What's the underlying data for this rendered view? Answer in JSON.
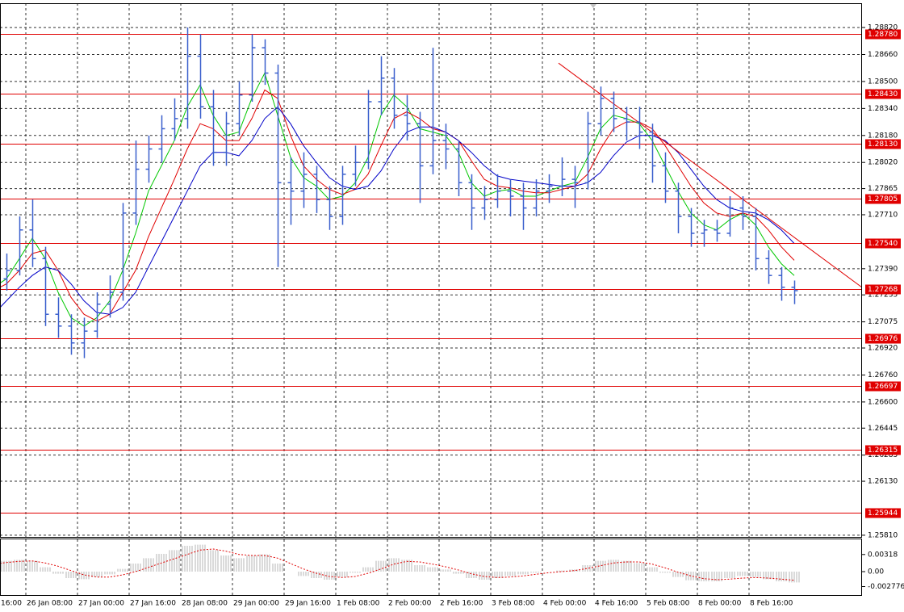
{
  "chart_data": {
    "type": "ohlc",
    "color": "#3a5fcd",
    "categories": [
      "16:00",
      null,
      null,
      null,
      "26 Jan 08:00",
      null,
      null,
      null,
      "27 Jan 00:00",
      null,
      null,
      null,
      "27 Jan 16:00",
      null,
      null,
      null,
      "28 Jan 08:00",
      null,
      null,
      null,
      "29 Jan 00:00",
      null,
      null,
      null,
      "29 Jan 16:00",
      null,
      null,
      null,
      "1 Feb 08:00",
      null,
      null,
      null,
      "2 Feb 00:00",
      null,
      null,
      null,
      "2 Feb 16:00",
      null,
      null,
      null,
      "3 Feb 08:00",
      null,
      null,
      null,
      "4 Feb 00:00",
      null,
      null,
      null,
      "4 Feb 16:00",
      null,
      null,
      null,
      "5 Feb 08:00",
      null,
      null,
      null,
      "8 Feb 00:00",
      null,
      null,
      null,
      "8 Feb 16:00",
      null,
      null,
      null
    ],
    "open": [
      1.2722,
      1.2728,
      1.2733,
      1.2738,
      1.2762,
      1.2745,
      1.2712,
      1.2705,
      1.2695,
      1.2702,
      1.2718,
      1.2725,
      1.2772,
      1.2798,
      1.281,
      1.2822,
      1.2828,
      1.2865,
      1.2835,
      1.2808,
      1.2825,
      1.2842,
      1.287,
      1.2855,
      1.279,
      1.2785,
      1.2795,
      1.278,
      1.277,
      1.2795,
      1.2802,
      1.2838,
      1.2852,
      1.283,
      1.2825,
      1.28,
      1.2815,
      1.281,
      1.279,
      1.2775,
      1.278,
      1.2785,
      1.2782,
      1.2775,
      1.2785,
      1.2788,
      1.2792,
      1.279,
      1.2825,
      1.284,
      1.2828,
      1.2826,
      1.282,
      1.28,
      1.2785,
      1.277,
      1.276,
      1.2762,
      1.276,
      1.2775,
      1.277,
      1.2745,
      1.2735,
      1.2728
    ],
    "high": [
      1.2735,
      1.274,
      1.2748,
      1.277,
      1.278,
      1.2752,
      1.2722,
      1.2712,
      1.271,
      1.2725,
      1.2735,
      1.2778,
      1.2815,
      1.2818,
      1.283,
      1.284,
      1.2882,
      1.2878,
      1.2845,
      1.2832,
      1.285,
      1.2878,
      1.2875,
      1.286,
      1.2805,
      1.2808,
      1.28,
      1.2788,
      1.28,
      1.2812,
      1.2845,
      1.2865,
      1.2858,
      1.2842,
      1.2832,
      1.287,
      1.2825,
      1.2815,
      1.2795,
      1.2788,
      1.2795,
      1.2792,
      1.279,
      1.2792,
      1.2795,
      1.2805,
      1.28,
      1.2832,
      1.2847,
      1.2844,
      1.2835,
      1.2835,
      1.2825,
      1.2808,
      1.279,
      1.2775,
      1.2768,
      1.2768,
      1.2782,
      1.2782,
      1.2775,
      1.275,
      1.274,
      1.2732
    ],
    "low": [
      1.2718,
      1.2724,
      1.2726,
      1.2735,
      1.274,
      1.2705,
      1.2698,
      1.2688,
      1.2686,
      1.2698,
      1.271,
      1.272,
      1.2765,
      1.279,
      1.2802,
      1.2815,
      1.2822,
      1.2828,
      1.28,
      1.28,
      1.2818,
      1.2838,
      1.2848,
      1.274,
      1.2765,
      1.2775,
      1.2772,
      1.2762,
      1.2765,
      1.2788,
      1.2798,
      1.283,
      1.2822,
      1.2815,
      1.2778,
      1.2795,
      1.2798,
      1.2782,
      1.2762,
      1.2768,
      1.2775,
      1.277,
      1.2762,
      1.277,
      1.2778,
      1.2782,
      1.2775,
      1.2786,
      1.2818,
      1.282,
      1.2815,
      1.281,
      1.279,
      1.2778,
      1.276,
      1.2752,
      1.2752,
      1.2755,
      1.2758,
      1.2762,
      1.2738,
      1.273,
      1.272,
      1.2718
    ],
    "close": [
      1.2728,
      1.2733,
      1.2738,
      1.2762,
      1.2745,
      1.2712,
      1.2705,
      1.2695,
      1.2702,
      1.2718,
      1.2725,
      1.2772,
      1.2798,
      1.281,
      1.2822,
      1.2828,
      1.2865,
      1.2835,
      1.2808,
      1.2825,
      1.2842,
      1.287,
      1.2855,
      1.279,
      1.2785,
      1.2795,
      1.278,
      1.277,
      1.2795,
      1.2802,
      1.2838,
      1.2852,
      1.283,
      1.2825,
      1.28,
      1.2815,
      1.281,
      1.279,
      1.2775,
      1.278,
      1.2785,
      1.2782,
      1.2775,
      1.2785,
      1.2788,
      1.2792,
      1.279,
      1.2825,
      1.284,
      1.2828,
      1.2826,
      1.282,
      1.28,
      1.2785,
      1.277,
      1.276,
      1.2762,
      1.276,
      1.2775,
      1.277,
      1.2745,
      1.2735,
      1.2728,
      1.2726
    ],
    "moving_averages": [
      {
        "color": "#00c800",
        "values": [
          1.2725,
          1.2728,
          1.2733,
          1.2745,
          1.2757,
          1.2745,
          1.2725,
          1.271,
          1.2705,
          1.271,
          1.272,
          1.2738,
          1.276,
          1.2785,
          1.28,
          1.2815,
          1.2835,
          1.2848,
          1.283,
          1.2818,
          1.282,
          1.284,
          1.2855,
          1.283,
          1.2805,
          1.2793,
          1.2788,
          1.278,
          1.2782,
          1.279,
          1.2805,
          1.283,
          1.2842,
          1.2835,
          1.2822,
          1.282,
          1.2818,
          1.2808,
          1.279,
          1.2782,
          1.2785,
          1.2786,
          1.2782,
          1.2782,
          1.2785,
          1.2788,
          1.279,
          1.2805,
          1.2822,
          1.283,
          1.2828,
          1.2825,
          1.2815,
          1.28,
          1.2785,
          1.2772,
          1.2765,
          1.2762,
          1.2768,
          1.2772,
          1.2765,
          1.2752,
          1.2742,
          1.2735
        ]
      },
      {
        "color": "#e00000",
        "values": [
          1.2722,
          1.2726,
          1.273,
          1.2738,
          1.2748,
          1.275,
          1.2738,
          1.2722,
          1.2712,
          1.2708,
          1.2712,
          1.2725,
          1.2738,
          1.2758,
          1.2775,
          1.2792,
          1.281,
          1.2825,
          1.2822,
          1.2815,
          1.2815,
          1.2828,
          1.2845,
          1.284,
          1.2818,
          1.28,
          1.2792,
          1.2786,
          1.2783,
          1.2786,
          1.2795,
          1.2812,
          1.2828,
          1.2832,
          1.2828,
          1.2822,
          1.282,
          1.2815,
          1.2803,
          1.2792,
          1.2788,
          1.2787,
          1.2785,
          1.2784,
          1.2784,
          1.2786,
          1.2788,
          1.2795,
          1.281,
          1.2822,
          1.2826,
          1.2826,
          1.2822,
          1.2812,
          1.28,
          1.2788,
          1.2778,
          1.2772,
          1.277,
          1.2772,
          1.277,
          1.2762,
          1.2752,
          1.2744
        ]
      },
      {
        "color": "#0000c8",
        "values": [
          1.2705,
          1.2712,
          1.272,
          1.2728,
          1.2735,
          1.274,
          1.2738,
          1.273,
          1.272,
          1.2713,
          1.2712,
          1.2716,
          1.2725,
          1.274,
          1.2755,
          1.277,
          1.2785,
          1.28,
          1.2808,
          1.2808,
          1.2806,
          1.2815,
          1.2828,
          1.2835,
          1.2825,
          1.2812,
          1.2802,
          1.2793,
          1.2788,
          1.2786,
          1.2788,
          1.2797,
          1.281,
          1.282,
          1.2823,
          1.2823,
          1.282,
          1.2815,
          1.2808,
          1.28,
          1.2794,
          1.2792,
          1.2791,
          1.279,
          1.2789,
          1.2788,
          1.2788,
          1.279,
          1.2796,
          1.2806,
          1.2814,
          1.2818,
          1.2818,
          1.2815,
          1.2808,
          1.2798,
          1.2788,
          1.278,
          1.2775,
          1.2773,
          1.2772,
          1.2768,
          1.2762,
          1.2754
        ]
      }
    ],
    "levels": [
      {
        "value": 1.2878,
        "label": "1.28780"
      },
      {
        "value": 1.2843,
        "label": "1.28430"
      },
      {
        "value": 1.2813,
        "label": "1.28130"
      },
      1.27805,
      {
        "value": 1.2754,
        "label": "1.27540"
      },
      1.27268,
      1.26976,
      1.26697,
      1.26315,
      1.25944
    ],
    "level_color": "#e00000",
    "trend_line": [
      1.28609,
      1.27279
    ],
    "ylim": [
      1.258,
      1.28964
    ],
    "yticks": [
      {
        "value": 1.2882,
        "label": "1.28820"
      },
      {
        "value": 1.2866,
        "label": "1.28660"
      },
      {
        "value": 1.285,
        "label": "1.28500"
      },
      {
        "value": 1.2834,
        "label": "1.28340"
      },
      {
        "value": 1.2818,
        "label": "1.28180"
      },
      {
        "value": 1.2802,
        "label": "1.28020"
      },
      1.27865,
      {
        "value": 1.2771,
        "label": "1.27710"
      },
      {
        "value": 1.2739,
        "label": "1.27390"
      },
      1.27235,
      1.27075,
      {
        "value": 1.2692,
        "label": "1.26920"
      },
      {
        "value": 1.2676,
        "label": "1.26760"
      },
      {
        "value": 1.266,
        "label": "1.26600"
      },
      1.26445,
      1.26285,
      {
        "value": 1.2613,
        "label": "1.26130"
      },
      {
        "value": 1.2581,
        "label": "1.25810"
      }
    ],
    "grid": true,
    "oscillator": {
      "histogram_color": "#b4b4b4",
      "signal_color": "#e00000",
      "histogram": [
        0.0015,
        0.0018,
        0.002,
        0.0022,
        0.002,
        0.0008,
        -0.0004,
        -0.0012,
        -0.0014,
        -0.001,
        -0.0005,
        0.0005,
        0.0015,
        0.0025,
        0.0033,
        0.004,
        0.0048,
        0.005,
        0.004,
        0.003,
        0.0025,
        0.003,
        0.0032,
        0.0015,
        0,
        -0.0008,
        -0.0012,
        -0.0015,
        -0.001,
        -0.0002,
        0.0008,
        0.002,
        0.0025,
        0.0022,
        0.0012,
        0.0008,
        0.0004,
        -0.0004,
        -0.0012,
        -0.0015,
        -0.0012,
        -0.0008,
        -0.0005,
        -0.0002,
        0,
        0.0002,
        0.0004,
        0.0012,
        0.002,
        0.0022,
        0.002,
        0.0016,
        0.0008,
        -0.0002,
        -0.001,
        -0.0016,
        -0.0018,
        -0.0018,
        -0.0012,
        -0.0008,
        -0.001,
        -0.0014,
        -0.0018,
        -0.002
      ],
      "signal": [
        0.001,
        0.0014,
        0.0017,
        0.0019,
        0.002,
        0.0016,
        0.001,
        0.0002,
        -0.0006,
        -0.001,
        -0.001,
        -0.0006,
        0,
        0.0008,
        0.0016,
        0.0024,
        0.0032,
        0.004,
        0.0042,
        0.0038,
        0.0032,
        0.003,
        0.003,
        0.0025,
        0.0015,
        0.0005,
        -0.0003,
        -0.0009,
        -0.0011,
        -0.0009,
        -0.0003,
        0.0005,
        0.0014,
        0.0019,
        0.0018,
        0.0014,
        0.0009,
        0.0003,
        -0.0004,
        -0.0009,
        -0.0011,
        -0.001,
        -0.0008,
        -0.0005,
        -0.0002,
        0,
        0.0002,
        0.0006,
        0.0011,
        0.0016,
        0.0018,
        0.0018,
        0.0014,
        0.0007,
        -0.0001,
        -0.0008,
        -0.0013,
        -0.0015,
        -0.0014,
        -0.0012,
        -0.0011,
        -0.0012,
        -0.0014,
        -0.0016
      ],
      "ylim": [
        -0.0045,
        0.006
      ],
      "yticks": [
        0.00318,
        {
          "value": 0,
          "label": "0.00"
        },
        -0.002776
      ]
    }
  }
}
